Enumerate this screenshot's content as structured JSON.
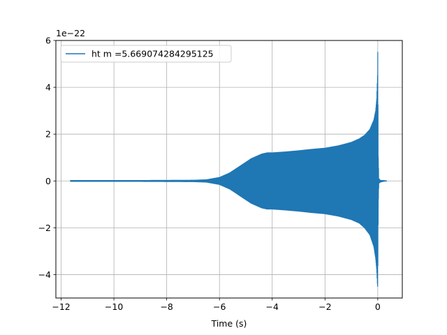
{
  "chart_data": {
    "type": "line",
    "title": "",
    "xlabel": "Time (s)",
    "ylabel": "",
    "y_offset_label": "1e−22",
    "xlim": [
      -12.2,
      0.93
    ],
    "ylim": [
      -5,
      6
    ],
    "xticks": [
      -12,
      -10,
      -8,
      -6,
      -4,
      -2,
      0
    ],
    "xtick_labels": [
      "−12",
      "−10",
      "−8",
      "−6",
      "−4",
      "−2",
      "0"
    ],
    "yticks": [
      -4,
      -2,
      0,
      2,
      4,
      6
    ],
    "ytick_labels": [
      "−4",
      "−2",
      "0",
      "2",
      "4",
      "6"
    ],
    "grid": true,
    "legend_position": "top-left",
    "series": [
      {
        "name": "ht m =5.669074284295125",
        "color": "#1f77b4",
        "style": "oscillating-envelope",
        "x": [
          -11.65,
          -9.0,
          -7.0,
          -6.5,
          -6.0,
          -5.6,
          -5.2,
          -4.8,
          -4.4,
          -4.2,
          -4.0,
          -3.5,
          -3.0,
          -2.5,
          -2.0,
          -1.5,
          -1.0,
          -0.7,
          -0.5,
          -0.3,
          -0.15,
          -0.08,
          -0.04,
          -0.01,
          0.0,
          0.02,
          0.04,
          0.1,
          0.2,
          0.35
        ],
        "upper": [
          0.02,
          0.02,
          0.03,
          0.05,
          0.15,
          0.35,
          0.65,
          0.95,
          1.15,
          1.2,
          1.2,
          1.24,
          1.29,
          1.35,
          1.4,
          1.5,
          1.65,
          1.8,
          1.95,
          2.2,
          2.6,
          3.0,
          3.5,
          4.5,
          5.5,
          1.0,
          0.1,
          0.02,
          0.02,
          0.0
        ],
        "lower": [
          -0.02,
          -0.02,
          -0.03,
          -0.05,
          -0.15,
          -0.35,
          -0.65,
          -0.95,
          -1.15,
          -1.2,
          -1.2,
          -1.24,
          -1.29,
          -1.35,
          -1.4,
          -1.5,
          -1.65,
          -1.8,
          -2.0,
          -2.3,
          -2.8,
          -3.3,
          -3.8,
          -4.5,
          -4.5,
          -1.0,
          -0.1,
          -0.05,
          -0.02,
          0.0
        ]
      }
    ]
  }
}
